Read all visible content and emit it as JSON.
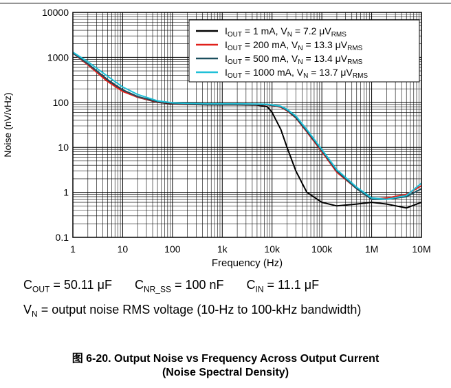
{
  "chart_data": {
    "type": "line",
    "xscale": "log",
    "yscale": "log",
    "xlim": [
      1,
      10000000
    ],
    "ylim": [
      0.1,
      10000
    ],
    "xlabel": "Frequency (Hz)",
    "ylabel": "Noise (nV/vHz)",
    "x_ticks": [
      "1",
      "10",
      "100",
      "1k",
      "10k",
      "100k",
      "1M",
      "10M"
    ],
    "y_ticks": [
      "0.1",
      "1",
      "10",
      "100",
      "1000",
      "10000"
    ],
    "grid": true,
    "legend_position": "top-right",
    "x": [
      1,
      2,
      5,
      10,
      20,
      50,
      100,
      200,
      500,
      1000,
      2000,
      5000,
      8000,
      10000,
      15000,
      20000,
      30000,
      50000,
      100000,
      200000,
      500000,
      1000000,
      2000000,
      5000000,
      10000000
    ],
    "series": [
      {
        "name_sub": "OUT",
        "name_pre": "I",
        "name_mid": " = 1 mA, V",
        "name_sub2": "N",
        "name_post": " = 7.2 μV",
        "name_sub3": "RMS",
        "color": "#000000",
        "values": [
          1250,
          700,
          300,
          180,
          130,
          100,
          93,
          90,
          88,
          88,
          88,
          87,
          80,
          60,
          25,
          10,
          3,
          1.0,
          0.6,
          0.5,
          0.55,
          0.6,
          0.55,
          0.45,
          0.6
        ]
      },
      {
        "name_sub": "OUT",
        "name_pre": "I",
        "name_mid": " = 200 mA, V",
        "name_sub2": "N",
        "name_post": " = 13.3 μV",
        "name_sub3": "RMS",
        "color": "#e0201b",
        "values": [
          1250,
          680,
          290,
          175,
          130,
          102,
          95,
          92,
          90,
          90,
          90,
          89,
          88,
          85,
          78,
          65,
          45,
          22,
          8,
          2.8,
          1.2,
          0.7,
          0.75,
          0.9,
          1.4
        ]
      },
      {
        "name_sub": "OUT",
        "name_pre": "I",
        "name_mid": " = 500 mA, V",
        "name_sub2": "N",
        "name_post": " = 13.4 μV",
        "name_sub3": "RMS",
        "color": "#1b4f5e",
        "values": [
          1250,
          720,
          320,
          190,
          135,
          104,
          96,
          93,
          91,
          91,
          91,
          90,
          89,
          86,
          80,
          67,
          46,
          23,
          8.5,
          3,
          1.2,
          0.7,
          0.7,
          0.8,
          1.2
        ]
      },
      {
        "name_sub": "OUT",
        "name_pre": "I",
        "name_mid": " = 1000 mA, V",
        "name_sub2": "N",
        "name_post": " = 13.7 μV",
        "name_sub3": "RMS",
        "color": "#20c0d8",
        "values": [
          1300,
          800,
          380,
          220,
          150,
          108,
          98,
          95,
          93,
          93,
          93,
          92,
          91,
          88,
          82,
          70,
          50,
          25,
          9,
          3.2,
          1.3,
          0.75,
          0.7,
          0.85,
          1.6
        ]
      }
    ]
  },
  "conditions": {
    "cout_pre": "C",
    "cout_sub": "OUT",
    "cout_val": " = 50.11 μF",
    "cnr_pre": "C",
    "cnr_sub": "NR_SS",
    "cnr_val": " = 100 nF",
    "cin_pre": "C",
    "cin_sub": "IN",
    "cin_val": " = 11.1 μF",
    "vn_pre": "V",
    "vn_sub": "N",
    "vn_text": " = output noise RMS voltage (10-Hz to 100-kHz bandwidth)"
  },
  "caption": {
    "line1": "图 6-20. Output Noise vs Frequency Across Output Current",
    "line2": "(Noise Spectral Density)"
  }
}
